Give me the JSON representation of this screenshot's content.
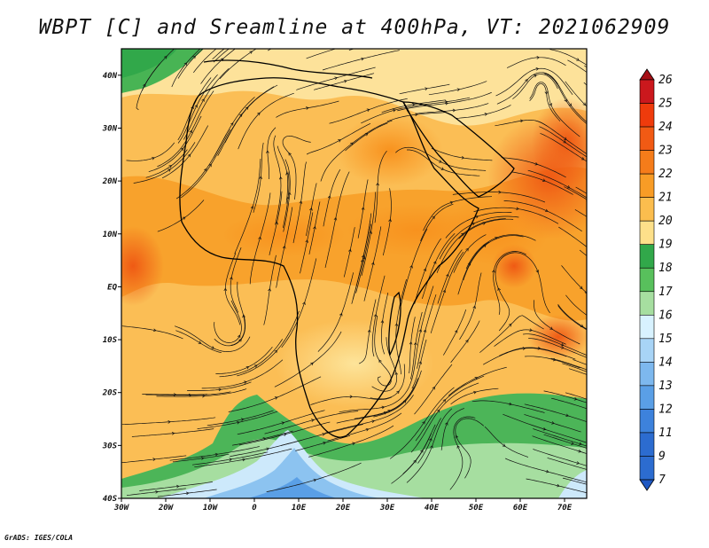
{
  "title": "WBPT [C] and Sreamline at 400hPa, VT: 2021062909",
  "credit": "GrADS: IGES/COLA",
  "map": {
    "lon_range": [
      -30,
      75
    ],
    "lat_range": [
      -40,
      45
    ],
    "lon_ticks": [
      {
        "value": -30,
        "label": "30W"
      },
      {
        "value": -20,
        "label": "20W"
      },
      {
        "value": -10,
        "label": "10W"
      },
      {
        "value": 0,
        "label": "0"
      },
      {
        "value": 10,
        "label": "10E"
      },
      {
        "value": 20,
        "label": "20E"
      },
      {
        "value": 30,
        "label": "30E"
      },
      {
        "value": 40,
        "label": "40E"
      },
      {
        "value": 50,
        "label": "50E"
      },
      {
        "value": 60,
        "label": "60E"
      },
      {
        "value": 70,
        "label": "70E"
      }
    ],
    "lat_ticks": [
      {
        "value": 40,
        "label": "40N"
      },
      {
        "value": 30,
        "label": "30N"
      },
      {
        "value": 20,
        "label": "20N"
      },
      {
        "value": 10,
        "label": "10N"
      },
      {
        "value": 0,
        "label": "EQ"
      },
      {
        "value": -10,
        "label": "10S"
      },
      {
        "value": -20,
        "label": "20S"
      },
      {
        "value": -30,
        "label": "30S"
      },
      {
        "value": -40,
        "label": "40S"
      }
    ]
  },
  "colorbar": {
    "levels": [
      {
        "label": "26",
        "color": "#a50f15"
      },
      {
        "label": "25",
        "color": "#cb181d"
      },
      {
        "label": "24",
        "color": "#ef3b0c"
      },
      {
        "label": "23",
        "color": "#f15a14"
      },
      {
        "label": "22",
        "color": "#f57c1a"
      },
      {
        "label": "21",
        "color": "#f89c26"
      },
      {
        "label": "20",
        "color": "#fbbd4e"
      },
      {
        "label": "19",
        "color": "#fde08a"
      },
      {
        "label": "18",
        "color": "#31a84a"
      },
      {
        "label": "17",
        "color": "#58c05c"
      },
      {
        "label": "16",
        "color": "#a6dea0"
      },
      {
        "label": "15",
        "color": "#d8f2ff"
      },
      {
        "label": "14",
        "color": "#a8d4f6"
      },
      {
        "label": "13",
        "color": "#7db8ee"
      },
      {
        "label": "12",
        "color": "#5a9fe6"
      },
      {
        "label": "11",
        "color": "#3d82dc"
      },
      {
        "label": "9",
        "color": "#2c6cd0"
      },
      {
        "label": "7",
        "color": "#1f58c2"
      }
    ]
  }
}
